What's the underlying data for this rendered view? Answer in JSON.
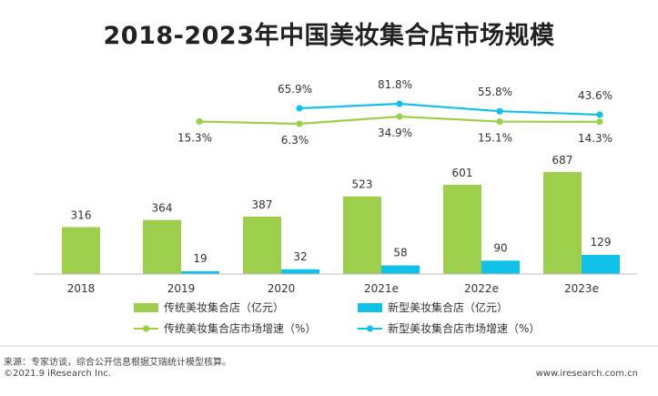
{
  "chart_data": {
    "type": "bar",
    "title": "2018-2023年中国美妆集合店市场规模",
    "categories": [
      "2018",
      "2019",
      "2020",
      "2021e",
      "2022e",
      "2023e"
    ],
    "series": [
      {
        "name": "传统美妆集合店（亿元）",
        "kind": "bar",
        "color": "#9dcf4c",
        "values": [
          316,
          364,
          387,
          523,
          601,
          687
        ],
        "labels": [
          "316",
          "364",
          "387",
          "523",
          "601",
          "687"
        ]
      },
      {
        "name": "新型美妆集合店（亿元）",
        "kind": "bar",
        "color": "#11c1e8",
        "values": [
          null,
          19,
          32,
          58,
          90,
          129
        ],
        "labels": [
          "",
          "19",
          "32",
          "58",
          "90",
          "129"
        ]
      },
      {
        "name": "传统美妆集合店市场增速（%）",
        "kind": "line",
        "color": "#9dcf4c",
        "values": [
          null,
          15.3,
          6.3,
          34.9,
          15.1,
          14.3
        ],
        "labels": [
          "",
          "15.3%",
          "6.3%",
          "34.9%",
          "15.1%",
          "14.3%"
        ]
      },
      {
        "name": "新型美妆集合店市场增速（%）",
        "kind": "line",
        "color": "#11c1e8",
        "values": [
          null,
          null,
          65.9,
          81.8,
          55.8,
          43.6
        ],
        "labels": [
          "",
          "",
          "65.9%",
          "81.8%",
          "55.8%",
          "43.6%"
        ]
      }
    ],
    "legend": "bottom",
    "grid": false
  },
  "source": "来源：专家访谈，综合公开信息根据艾瑞统计模型核算。",
  "copyright": "©2021.9 iResearch Inc.",
  "website": "www.iresearch.com.cn"
}
